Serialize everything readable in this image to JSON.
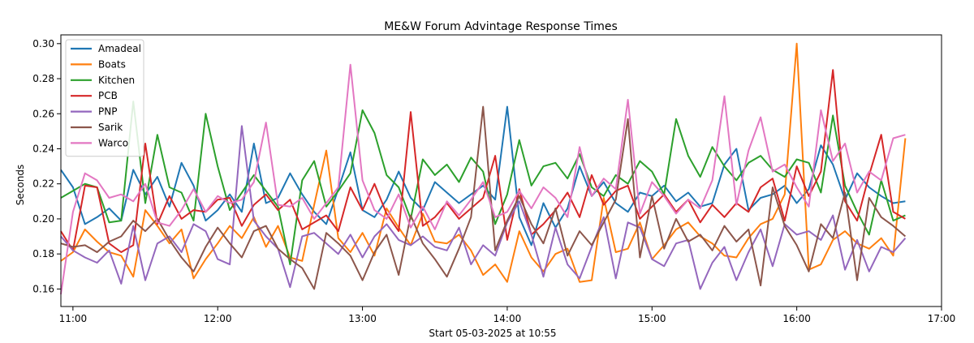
{
  "chart_data": {
    "type": "line",
    "title": "ME&W Forum Advintage Response Times",
    "xlabel": "Start 05-03-2025 at 10:55",
    "ylabel": "Seconds",
    "x_ticks": [
      "11:00",
      "12:00",
      "13:00",
      "14:00",
      "15:00",
      "16:00",
      "17:00"
    ],
    "y_ticks": [
      "0.16",
      "0.18",
      "0.20",
      "0.22",
      "0.24",
      "0.26",
      "0.28",
      "0.30"
    ],
    "xlim": [
      "10:55",
      "17:00"
    ],
    "ylim": [
      0.15,
      0.305
    ],
    "grid": false,
    "legend_position": "top-left",
    "x": [
      "10:55",
      "11:00",
      "11:05",
      "11:10",
      "11:15",
      "11:20",
      "11:25",
      "11:30",
      "11:35",
      "11:40",
      "11:45",
      "11:50",
      "11:55",
      "12:00",
      "12:05",
      "12:10",
      "12:15",
      "12:20",
      "12:25",
      "12:30",
      "12:35",
      "12:40",
      "12:45",
      "12:50",
      "12:55",
      "13:00",
      "13:05",
      "13:10",
      "13:15",
      "13:20",
      "13:25",
      "13:30",
      "13:35",
      "13:40",
      "13:45",
      "13:50",
      "13:55",
      "14:00",
      "14:05",
      "14:10",
      "14:15",
      "14:20",
      "14:25",
      "14:30",
      "14:35",
      "14:40",
      "14:45",
      "14:50",
      "14:55",
      "15:00",
      "15:05",
      "15:10",
      "15:15",
      "15:20",
      "15:25",
      "15:30",
      "15:35",
      "15:40",
      "15:45",
      "15:50",
      "15:55",
      "16:00",
      "16:05",
      "16:10",
      "16:15",
      "16:20",
      "16:25",
      "16:30",
      "16:35",
      "16:40",
      "16:45"
    ],
    "series": [
      {
        "name": "Amadeal",
        "color": "#1f77b4",
        "values": [
          0.228,
          0.218,
          0.197,
          0.201,
          0.206,
          0.199,
          0.228,
          0.214,
          0.224,
          0.207,
          0.232,
          0.219,
          0.199,
          0.205,
          0.214,
          0.204,
          0.243,
          0.209,
          0.212,
          0.226,
          0.214,
          0.204,
          0.197,
          0.217,
          0.238,
          0.205,
          0.201,
          0.211,
          0.227,
          0.212,
          0.205,
          0.221,
          0.215,
          0.209,
          0.214,
          0.219,
          0.211,
          0.264,
          0.201,
          0.185,
          0.209,
          0.195,
          0.206,
          0.23,
          0.213,
          0.221,
          0.209,
          0.204,
          0.215,
          0.213,
          0.219,
          0.21,
          0.215,
          0.207,
          0.209,
          0.231,
          0.24,
          0.205,
          0.212,
          0.214,
          0.219,
          0.209,
          0.217,
          0.242,
          0.231,
          0.211,
          0.226,
          0.218,
          0.213,
          0.209,
          0.21
        ]
      },
      {
        "name": "Boats",
        "color": "#ff7f0e",
        "values": [
          0.176,
          0.181,
          0.194,
          0.187,
          0.181,
          0.179,
          0.167,
          0.205,
          0.196,
          0.186,
          0.194,
          0.166,
          0.177,
          0.186,
          0.196,
          0.189,
          0.201,
          0.184,
          0.196,
          0.178,
          0.176,
          0.208,
          0.239,
          0.189,
          0.181,
          0.192,
          0.179,
          0.206,
          0.195,
          0.185,
          0.203,
          0.187,
          0.186,
          0.191,
          0.182,
          0.168,
          0.174,
          0.164,
          0.193,
          0.178,
          0.17,
          0.18,
          0.183,
          0.164,
          0.165,
          0.212,
          0.181,
          0.183,
          0.198,
          0.177,
          0.185,
          0.194,
          0.198,
          0.19,
          0.186,
          0.179,
          0.178,
          0.189,
          0.197,
          0.2,
          0.214,
          0.3,
          0.171,
          0.174,
          0.188,
          0.193,
          0.186,
          0.183,
          0.189,
          0.179,
          0.246
        ]
      },
      {
        "name": "Kitchen",
        "color": "#2ca02c",
        "values": [
          0.212,
          0.216,
          0.22,
          0.218,
          0.198,
          0.199,
          0.267,
          0.209,
          0.248,
          0.218,
          0.215,
          0.199,
          0.26,
          0.23,
          0.205,
          0.215,
          0.225,
          0.216,
          0.207,
          0.174,
          0.222,
          0.233,
          0.207,
          0.216,
          0.226,
          0.262,
          0.249,
          0.225,
          0.218,
          0.2,
          0.234,
          0.225,
          0.231,
          0.221,
          0.235,
          0.227,
          0.197,
          0.214,
          0.245,
          0.219,
          0.23,
          0.232,
          0.223,
          0.237,
          0.218,
          0.213,
          0.225,
          0.22,
          0.233,
          0.227,
          0.214,
          0.257,
          0.236,
          0.224,
          0.241,
          0.23,
          0.222,
          0.232,
          0.236,
          0.228,
          0.224,
          0.234,
          0.232,
          0.215,
          0.259,
          0.219,
          0.204,
          0.191,
          0.222,
          0.199,
          0.202
        ]
      },
      {
        "name": "PCB",
        "color": "#d62728",
        "values": [
          0.193,
          0.182,
          0.219,
          0.218,
          0.186,
          0.181,
          0.185,
          0.243,
          0.197,
          0.213,
          0.2,
          0.205,
          0.204,
          0.211,
          0.212,
          0.196,
          0.208,
          0.214,
          0.205,
          0.211,
          0.194,
          0.198,
          0.202,
          0.193,
          0.218,
          0.205,
          0.22,
          0.203,
          0.193,
          0.261,
          0.196,
          0.201,
          0.209,
          0.2,
          0.206,
          0.212,
          0.236,
          0.188,
          0.217,
          0.191,
          0.197,
          0.205,
          0.215,
          0.201,
          0.225,
          0.208,
          0.216,
          0.219,
          0.2,
          0.207,
          0.214,
          0.204,
          0.211,
          0.198,
          0.208,
          0.201,
          0.209,
          0.204,
          0.218,
          0.223,
          0.199,
          0.23,
          0.213,
          0.227,
          0.285,
          0.21,
          0.199,
          0.225,
          0.248,
          0.204,
          0.2
        ]
      },
      {
        "name": "PNP",
        "color": "#9467bd",
        "values": [
          0.19,
          0.182,
          0.178,
          0.175,
          0.182,
          0.163,
          0.196,
          0.165,
          0.186,
          0.19,
          0.181,
          0.197,
          0.193,
          0.177,
          0.174,
          0.253,
          0.199,
          0.19,
          0.183,
          0.161,
          0.19,
          0.192,
          0.186,
          0.18,
          0.191,
          0.178,
          0.19,
          0.197,
          0.188,
          0.185,
          0.19,
          0.184,
          0.182,
          0.195,
          0.174,
          0.185,
          0.179,
          0.198,
          0.21,
          0.191,
          0.167,
          0.195,
          0.174,
          0.166,
          0.184,
          0.201,
          0.166,
          0.198,
          0.195,
          0.177,
          0.173,
          0.186,
          0.188,
          0.16,
          0.175,
          0.184,
          0.165,
          0.181,
          0.194,
          0.173,
          0.197,
          0.191,
          0.193,
          0.188,
          0.202,
          0.171,
          0.188,
          0.17,
          0.184,
          0.181,
          0.189
        ]
      },
      {
        "name": "Sarik",
        "color": "#8c564b",
        "values": [
          0.186,
          0.184,
          0.185,
          0.181,
          0.187,
          0.19,
          0.199,
          0.193,
          0.2,
          0.188,
          0.178,
          0.17,
          0.184,
          0.195,
          0.186,
          0.178,
          0.193,
          0.196,
          0.183,
          0.177,
          0.172,
          0.16,
          0.192,
          0.186,
          0.179,
          0.165,
          0.181,
          0.191,
          0.168,
          0.202,
          0.186,
          0.177,
          0.167,
          0.183,
          0.201,
          0.264,
          0.182,
          0.199,
          0.213,
          0.197,
          0.186,
          0.206,
          0.179,
          0.193,
          0.185,
          0.198,
          0.211,
          0.257,
          0.178,
          0.213,
          0.183,
          0.2,
          0.187,
          0.191,
          0.182,
          0.196,
          0.187,
          0.194,
          0.162,
          0.218,
          0.196,
          0.185,
          0.17,
          0.197,
          0.189,
          0.215,
          0.165,
          0.212,
          0.201,
          0.196,
          0.19
        ]
      },
      {
        "name": "Warco",
        "color": "#e377c2",
        "values": [
          0.157,
          0.204,
          0.226,
          0.222,
          0.212,
          0.214,
          0.21,
          0.22,
          0.198,
          0.196,
          0.205,
          0.217,
          0.204,
          0.213,
          0.209,
          0.211,
          0.221,
          0.255,
          0.208,
          0.207,
          0.212,
          0.2,
          0.209,
          0.218,
          0.288,
          0.222,
          0.205,
          0.2,
          0.214,
          0.195,
          0.207,
          0.194,
          0.21,
          0.202,
          0.211,
          0.221,
          0.201,
          0.204,
          0.216,
          0.206,
          0.218,
          0.212,
          0.201,
          0.241,
          0.213,
          0.223,
          0.217,
          0.268,
          0.203,
          0.221,
          0.213,
          0.203,
          0.211,
          0.206,
          0.222,
          0.27,
          0.208,
          0.239,
          0.258,
          0.227,
          0.231,
          0.218,
          0.207,
          0.262,
          0.233,
          0.243,
          0.215,
          0.227,
          0.222,
          0.246,
          0.248
        ]
      }
    ]
  }
}
